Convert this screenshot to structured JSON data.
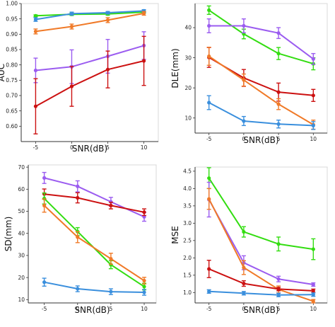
{
  "colors": {
    "green": "#33dd11",
    "blue": "#3a8fdd",
    "orange": "#f07a28",
    "purple": "#9b5cf0",
    "red": "#cc1111",
    "axis": "#333333"
  },
  "chart_data": [
    {
      "type": "line",
      "title": "",
      "xlabel": "SNR(dB)",
      "ylabel": "AUC",
      "x": [
        -5,
        0,
        5,
        10
      ],
      "x_ticks": [
        "-5",
        "0",
        "5",
        "10"
      ],
      "ylim": [
        0.55,
        1.0
      ],
      "y_ticks": [
        "0.60",
        "0.65",
        "0.70",
        "0.75",
        "0.80",
        "0.85",
        "0.90",
        "0.95",
        "1.00"
      ],
      "y_tick_values": [
        0.6,
        0.65,
        0.7,
        0.75,
        0.8,
        0.85,
        0.9,
        0.95,
        1.0
      ],
      "grid": false,
      "series": [
        {
          "color": "green",
          "values": [
            0.96,
            0.965,
            0.966,
            0.972
          ],
          "errors": [
            0.003,
            0.004,
            0.004,
            0.003
          ]
        },
        {
          "color": "blue",
          "values": [
            0.948,
            0.967,
            0.97,
            0.976
          ],
          "errors": [
            0.006,
            0.005,
            0.004,
            0.004
          ]
        },
        {
          "color": "orange",
          "values": [
            0.909,
            0.925,
            0.946,
            0.968
          ],
          "errors": [
            0.008,
            0.008,
            0.008,
            0.006
          ]
        },
        {
          "color": "purple",
          "values": [
            0.782,
            0.794,
            0.828,
            0.863
          ],
          "errors": [
            0.04,
            0.055,
            0.055,
            0.045
          ]
        },
        {
          "color": "red",
          "values": [
            0.665,
            0.73,
            0.785,
            0.813
          ],
          "errors": [
            0.09,
            0.065,
            0.06,
            0.08
          ]
        }
      ]
    },
    {
      "type": "line",
      "title": "",
      "xlabel": "SNR(dB)",
      "ylabel": "DLE(mm)",
      "x": [
        -5,
        0,
        5,
        10
      ],
      "x_ticks": [
        "-5",
        "0",
        "5",
        "10"
      ],
      "ylim": [
        5,
        48
      ],
      "y_ticks": [
        "10",
        "20",
        "30",
        "40"
      ],
      "y_tick_values": [
        10,
        20,
        30,
        40
      ],
      "grid": false,
      "series": [
        {
          "color": "green",
          "values": [
            45.8,
            37.9,
            31.4,
            28.0
          ],
          "errors": [
            1.4,
            1.6,
            2.0,
            2.0
          ]
        },
        {
          "color": "purple",
          "values": [
            40.6,
            40.6,
            38.2,
            29.6
          ],
          "errors": [
            2.3,
            2.3,
            1.8,
            1.8
          ]
        },
        {
          "color": "red",
          "values": [
            30.1,
            23.3,
            18.6,
            17.5
          ],
          "errors": [
            3.3,
            2.8,
            3.0,
            2.0
          ]
        },
        {
          "color": "orange",
          "values": [
            30.5,
            22.6,
            14.6,
            7.8
          ],
          "errors": [
            3.0,
            2.0,
            1.8,
            1.5
          ]
        },
        {
          "color": "blue",
          "values": [
            15.1,
            9.0,
            8.0,
            7.5
          ],
          "errors": [
            2.3,
            1.5,
            1.3,
            1.3
          ]
        }
      ]
    },
    {
      "type": "line",
      "title": "",
      "xlabel": "SNR(dB)",
      "ylabel": "SD(mm)",
      "x": [
        -5,
        0,
        5,
        10
      ],
      "x_ticks": [
        "-5",
        "0",
        "5",
        "10"
      ],
      "ylim": [
        8.5,
        71
      ],
      "y_ticks": [
        "10",
        "20",
        "30",
        "40",
        "50",
        "60",
        "70"
      ],
      "y_tick_values": [
        10,
        20,
        30,
        40,
        50,
        60,
        70
      ],
      "grid": false,
      "series": [
        {
          "color": "purple",
          "values": [
            65.1,
            61.3,
            54.3,
            47.5
          ],
          "errors": [
            2.5,
            2.5,
            2.0,
            2.0
          ]
        },
        {
          "color": "red",
          "values": [
            57.8,
            56.1,
            52.6,
            49.6
          ],
          "errors": [
            2.3,
            2.3,
            1.5,
            1.5
          ]
        },
        {
          "color": "green",
          "values": [
            55.8,
            40.8,
            25.8,
            15.9
          ],
          "errors": [
            2.5,
            1.8,
            1.8,
            1.5
          ]
        },
        {
          "color": "orange",
          "values": [
            52.6,
            38.3,
            28.5,
            18.6
          ],
          "errors": [
            3.0,
            2.5,
            2.5,
            1.5
          ]
        },
        {
          "color": "blue",
          "values": [
            17.9,
            14.9,
            13.6,
            13.3
          ],
          "errors": [
            1.8,
            1.3,
            1.3,
            1.3
          ]
        }
      ]
    },
    {
      "type": "line",
      "title": "",
      "xlabel": "SNR(dB)",
      "ylabel": "MSE",
      "x": [
        -5,
        0,
        5,
        10
      ],
      "x_ticks": [
        "-5",
        "0",
        "5",
        "10"
      ],
      "ylim": [
        0.7,
        4.62
      ],
      "y_ticks": [
        "1.0",
        "1.5",
        "2.0",
        "2.5",
        "3.0",
        "3.5",
        "4.0",
        "4.5"
      ],
      "y_tick_values": [
        1.0,
        1.5,
        2.0,
        2.5,
        3.0,
        3.5,
        4.0,
        4.5
      ],
      "grid": false,
      "series": [
        {
          "color": "green",
          "values": [
            4.3,
            2.75,
            2.4,
            2.25
          ],
          "errors": [
            0.3,
            0.15,
            0.2,
            0.3
          ]
        },
        {
          "color": "purple",
          "values": [
            3.68,
            1.86,
            1.39,
            1.23
          ],
          "errors": [
            0.5,
            0.2,
            0.08,
            0.05
          ]
        },
        {
          "color": "orange",
          "values": [
            3.7,
            1.72,
            1.09,
            0.75
          ],
          "errors": [
            0.3,
            0.2,
            0.1,
            0.05
          ]
        },
        {
          "color": "red",
          "values": [
            1.68,
            1.26,
            1.1,
            1.05
          ],
          "errors": [
            0.25,
            0.08,
            0.05,
            0.05
          ]
        },
        {
          "color": "blue",
          "values": [
            1.03,
            0.98,
            0.93,
            0.94
          ],
          "errors": [
            0.05,
            0.05,
            0.05,
            0.05
          ]
        }
      ]
    }
  ]
}
